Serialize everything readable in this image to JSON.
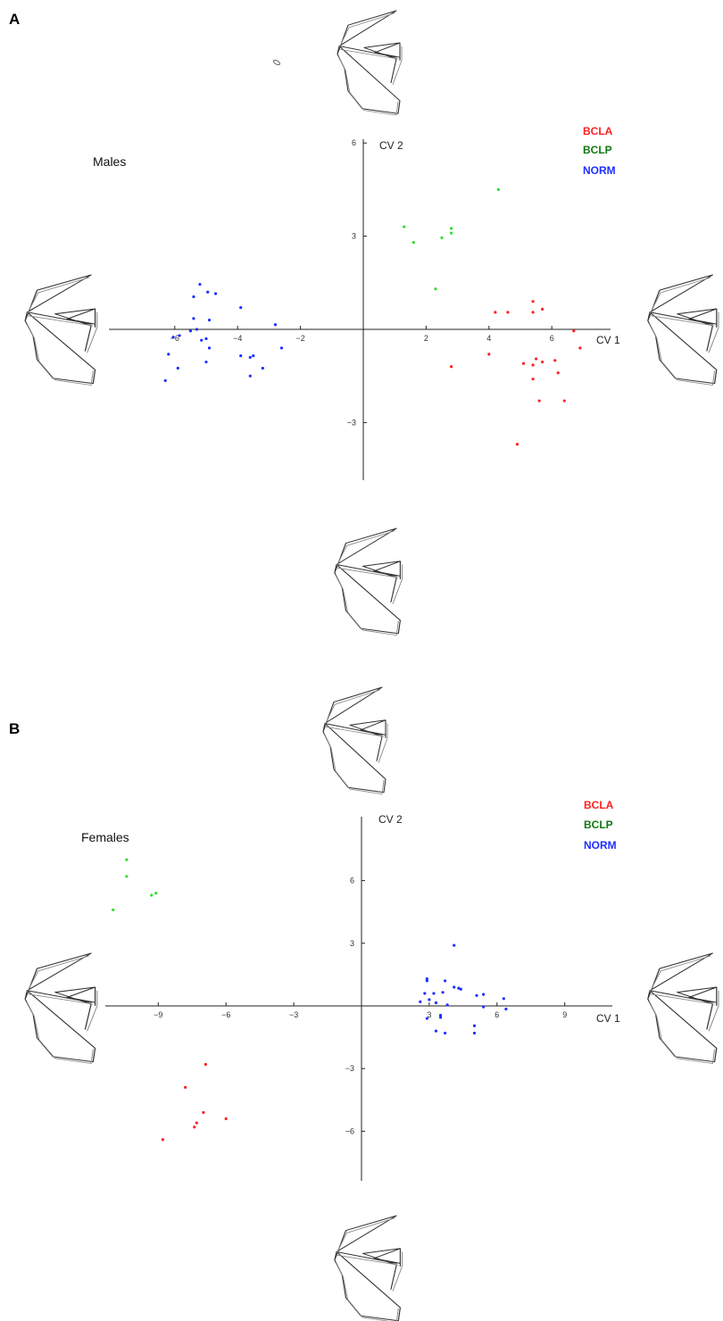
{
  "colors": {
    "BCLA": "#ff2020",
    "BCLP": "#33dd33",
    "NORM": "#1f2fff",
    "legend_BCLP_text": "#117711"
  },
  "chart_data": [
    {
      "type": "scatter",
      "panel": "A",
      "label": "Males",
      "xlabel": "CV 1",
      "ylabel": "CV 2",
      "xlim": [
        -8.6,
        8.8
      ],
      "ylim": [
        -4.8,
        6.2
      ],
      "xticks": [
        -6,
        -4,
        -2,
        2,
        4,
        6
      ],
      "xtick_labels": [
        "−6",
        "−4",
        "−2",
        "2",
        "4",
        "6"
      ],
      "yticks": [
        -3,
        3,
        6
      ],
      "ytick_labels": [
        "−3",
        "3",
        "6"
      ],
      "legend": [
        "BCLA",
        "BCLP",
        "NORM"
      ],
      "legend_position": "top-right",
      "series": [
        {
          "name": "BCLA",
          "color": "#ff2020",
          "points": [
            [
              4.2,
              0.55
            ],
            [
              4.6,
              0.55
            ],
            [
              5.4,
              0.9
            ],
            [
              5.7,
              0.65
            ],
            [
              5.4,
              0.55
            ],
            [
              6.7,
              -0.05
            ],
            [
              6.9,
              -0.6
            ],
            [
              2.8,
              -1.2
            ],
            [
              4.0,
              -0.8
            ],
            [
              5.5,
              -0.95
            ],
            [
              5.1,
              -1.1
            ],
            [
              5.4,
              -1.15
            ],
            [
              5.7,
              -1.05
            ],
            [
              6.1,
              -1.0
            ],
            [
              6.2,
              -1.4
            ],
            [
              5.4,
              -1.6
            ],
            [
              5.6,
              -2.3
            ],
            [
              6.4,
              -2.3
            ],
            [
              4.9,
              -3.7
            ]
          ]
        },
        {
          "name": "BCLP",
          "color": "#33dd33",
          "points": [
            [
              4.3,
              4.5
            ],
            [
              1.3,
              3.3
            ],
            [
              2.8,
              3.25
            ],
            [
              2.8,
              3.1
            ],
            [
              1.6,
              2.8
            ],
            [
              2.5,
              2.95
            ],
            [
              2.3,
              1.3
            ]
          ]
        },
        {
          "name": "NORM",
          "color": "#1f2fff",
          "points": [
            [
              -5.2,
              1.45
            ],
            [
              -4.95,
              1.2
            ],
            [
              -5.4,
              1.05
            ],
            [
              -4.7,
              1.15
            ],
            [
              -3.9,
              0.7
            ],
            [
              -5.4,
              0.35
            ],
            [
              -4.9,
              0.3
            ],
            [
              -5.5,
              -0.05
            ],
            [
              -5.3,
              0.0
            ],
            [
              -5.85,
              -0.2
            ],
            [
              -5.0,
              -0.3
            ],
            [
              -6.05,
              -0.25
            ],
            [
              -5.15,
              -0.35
            ],
            [
              -4.9,
              -0.6
            ],
            [
              -3.9,
              -0.85
            ],
            [
              -3.5,
              -0.85
            ],
            [
              -3.6,
              -0.9
            ],
            [
              -6.2,
              -0.8
            ],
            [
              -5.9,
              -1.25
            ],
            [
              -5.0,
              -1.05
            ],
            [
              -3.2,
              -1.25
            ],
            [
              -3.6,
              -1.5
            ],
            [
              -2.6,
              -0.6
            ],
            [
              -2.8,
              0.15
            ],
            [
              -6.3,
              -1.65
            ]
          ]
        }
      ]
    },
    {
      "type": "scatter",
      "panel": "B",
      "label": "Females",
      "xlabel": "CV 1",
      "ylabel": "CV 2",
      "xlim": [
        -11.5,
        11.0
      ],
      "ylim": [
        -8.0,
        8.2
      ],
      "xticks": [
        -9,
        -6,
        -3,
        3,
        6,
        9
      ],
      "xtick_labels": [
        "−9",
        "−6",
        "−3",
        "3",
        "6",
        "9"
      ],
      "yticks": [
        -6,
        -3,
        3,
        6
      ],
      "ytick_labels": [
        "−6",
        "−3",
        "3",
        "6"
      ],
      "legend": [
        "BCLA",
        "BCLP",
        "NORM"
      ],
      "legend_position": "top-right",
      "series": [
        {
          "name": "BCLA",
          "color": "#ff2020",
          "points": [
            [
              -6.9,
              -2.8
            ],
            [
              -7.8,
              -3.9
            ],
            [
              -7.0,
              -5.1
            ],
            [
              -7.3,
              -5.6
            ],
            [
              -7.4,
              -5.8
            ],
            [
              -6.0,
              -5.4
            ],
            [
              -8.8,
              -6.4
            ]
          ]
        },
        {
          "name": "BCLP",
          "color": "#33dd33",
          "points": [
            [
              -10.4,
              7.0
            ],
            [
              -10.4,
              6.2
            ],
            [
              -9.3,
              5.3
            ],
            [
              -9.1,
              5.4
            ],
            [
              -11.0,
              4.6
            ]
          ]
        },
        {
          "name": "NORM",
          "color": "#1f2fff",
          "points": [
            [
              4.1,
              2.9
            ],
            [
              2.9,
              1.2
            ],
            [
              2.9,
              1.3
            ],
            [
              3.7,
              1.2
            ],
            [
              4.1,
              0.9
            ],
            [
              4.3,
              0.85
            ],
            [
              4.4,
              0.8
            ],
            [
              2.8,
              0.6
            ],
            [
              3.2,
              0.6
            ],
            [
              3.6,
              0.65
            ],
            [
              5.4,
              0.55
            ],
            [
              5.1,
              0.5
            ],
            [
              6.3,
              0.35
            ],
            [
              2.6,
              0.2
            ],
            [
              3.0,
              0.3
            ],
            [
              3.3,
              0.15
            ],
            [
              3.8,
              0.05
            ],
            [
              5.4,
              -0.05
            ],
            [
              6.4,
              -0.15
            ],
            [
              2.9,
              -0.6
            ],
            [
              3.5,
              -0.45
            ],
            [
              3.5,
              -0.55
            ],
            [
              5.0,
              -0.95
            ],
            [
              3.3,
              -1.2
            ],
            [
              3.7,
              -1.3
            ],
            [
              5.0,
              -1.3
            ]
          ]
        }
      ]
    }
  ]
}
